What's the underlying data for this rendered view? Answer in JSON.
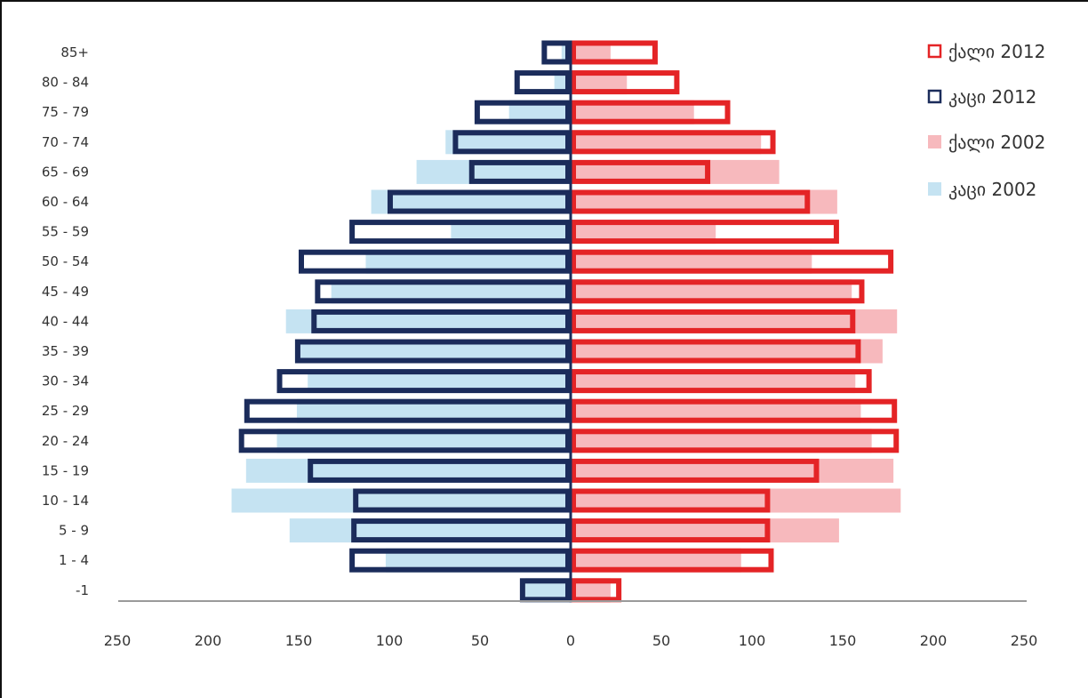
{
  "chart_data": {
    "type": "bar",
    "orientation": "horizontal-population-pyramid",
    "categories": [
      "85+",
      "80 - 84",
      "75 - 79",
      "70 - 74",
      "65 - 69",
      "60 - 64",
      "55 - 59",
      "50 - 54",
      "45 - 49",
      "40 - 44",
      "35 - 39",
      "30 - 34",
      "25 - 29",
      "20 - 24",
      "15 - 19",
      "10 - 14",
      "5 - 9",
      "1 - 4",
      "-1"
    ],
    "xlim": [
      -250,
      250
    ],
    "xticks": [
      "250",
      "200",
      "150",
      "100",
      "50",
      "0",
      "50",
      "100",
      "150",
      "200",
      "250"
    ],
    "grid": false,
    "legend_position": "top-right",
    "series": [
      {
        "name": "ქალი 2012",
        "side": "right",
        "style": "outline",
        "color": "#e42426",
        "values": [
          48,
          60,
          88,
          113,
          77,
          132,
          148,
          178,
          162,
          157,
          160,
          166,
          180,
          181,
          137,
          110,
          110,
          112,
          28
        ]
      },
      {
        "name": "კაცი 2012",
        "side": "left",
        "style": "outline",
        "color": "#1b2c5b",
        "values": [
          16,
          31,
          53,
          65,
          56,
          101,
          122,
          150,
          141,
          143,
          152,
          162,
          180,
          183,
          145,
          120,
          121,
          122,
          28
        ]
      },
      {
        "name": "ქალი 2002",
        "side": "right",
        "style": "fill",
        "color": "#f7b9bd",
        "values": [
          22,
          31,
          68,
          105,
          115,
          147,
          80,
          133,
          155,
          180,
          172,
          157,
          160,
          166,
          178,
          182,
          148,
          94,
          22
        ]
      },
      {
        "name": "კაცი 2002",
        "side": "left",
        "style": "fill",
        "color": "#c5e3f2",
        "values": [
          5,
          9,
          34,
          69,
          85,
          110,
          66,
          113,
          132,
          157,
          152,
          145,
          151,
          162,
          179,
          187,
          155,
          102,
          25
        ]
      }
    ]
  }
}
